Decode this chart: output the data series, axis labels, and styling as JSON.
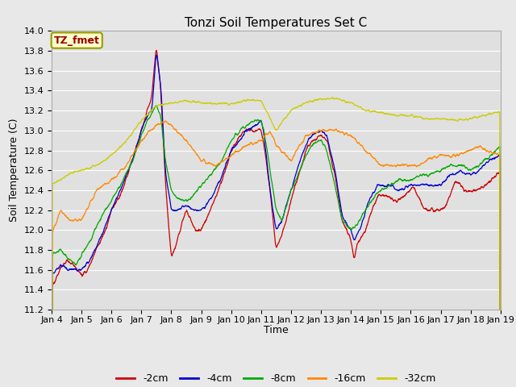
{
  "title": "Tonzi Soil Temperatures Set C",
  "xlabel": "Time",
  "ylabel": "Soil Temperature (C)",
  "ylim": [
    11.2,
    14.0
  ],
  "date_labels": [
    "Jan 4",
    "Jan 5",
    "Jan 6",
    "Jan 7",
    "Jan 8",
    "Jan 9",
    "Jan 10",
    "Jan 11",
    "Jan 12",
    "Jan 13",
    "Jan 14",
    "Jan 15",
    "Jan 16",
    "Jan 17",
    "Jan 18",
    "Jan 19"
  ],
  "legend": [
    "-2cm",
    "-4cm",
    "-8cm",
    "-16cm",
    "-32cm"
  ],
  "line_colors": [
    "#cc0000",
    "#0000cc",
    "#00aa00",
    "#ff8800",
    "#cccc00"
  ],
  "fig_bg_color": "#e8e8e8",
  "plot_bg_color": "#e0e0e0",
  "annotation_text": "TZ_fmet",
  "annotation_fg": "#990000",
  "annotation_bg": "#ffffcc",
  "annotation_border": "#999900",
  "grid_color": "#ffffff",
  "title_fontsize": 11,
  "label_fontsize": 9,
  "tick_fontsize": 8,
  "legend_fontsize": 9
}
